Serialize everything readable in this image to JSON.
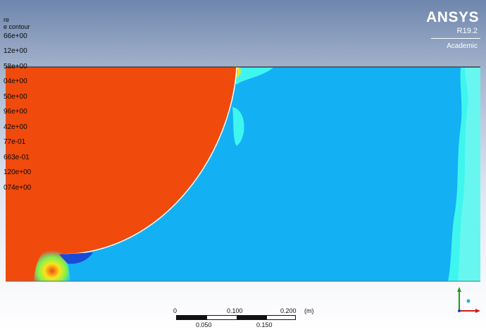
{
  "legend": {
    "title": "re",
    "subtitle": "e contour",
    "labels": [
      "66e+00",
      "12e+00",
      "58e+00",
      "04e+00",
      "50e+00",
      "96e+00",
      "42e+00",
      "77e-01",
      "663e-01",
      "120e+00",
      "074e+00"
    ]
  },
  "brand": {
    "name": "ANSYS",
    "version": "R19.2",
    "edition": "Academic"
  },
  "scale": {
    "top_labels": [
      "0",
      "0.100",
      "0.200"
    ],
    "bottom_labels": [
      "0.050",
      "0.150"
    ],
    "unit": "(m)"
  },
  "colors": {
    "high": "#f04a0c",
    "field": "#14b0f4",
    "edge": "#3ef6ee",
    "hotspot": "#f8e41e",
    "low": "#1a4ad6"
  },
  "icons": [
    "coordinate-axes-icon"
  ]
}
